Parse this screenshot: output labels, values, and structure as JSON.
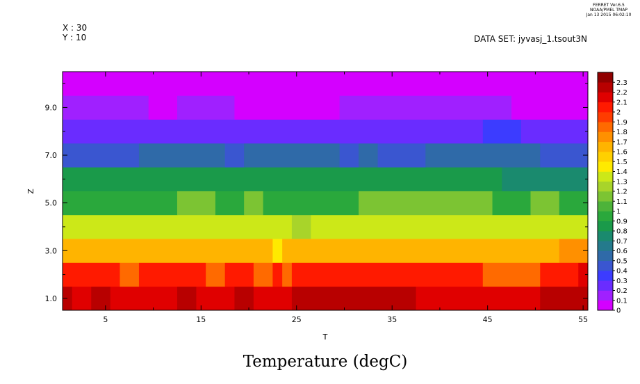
{
  "header": {
    "ferret_version": "FERRET  Ver.6.5",
    "ferret_org": "NOAA/PMEL TMAP",
    "ferret_date": "Jan 13 2015 06:02:10",
    "x_info": "X : 30",
    "y_info": "Y : 10",
    "dataset": "DATA SET: jyvasj_1.tsout3N"
  },
  "chart_data": {
    "type": "heatmap",
    "title": "Temperature (degC)",
    "xlabel": "T",
    "ylabel": "Z",
    "xlim": [
      0.5,
      55.5
    ],
    "ylim": [
      0.5,
      10.5
    ],
    "x_ticks": [
      5,
      15,
      25,
      35,
      45,
      55
    ],
    "x_tick_labels": [
      "5",
      "15",
      "25",
      "35",
      "45",
      "55"
    ],
    "y_ticks": [
      1,
      3,
      5,
      7,
      9
    ],
    "y_tick_labels": [
      "1.0",
      "3.0",
      "5.0",
      "7.0",
      "9.0"
    ],
    "z_levels": [
      "0",
      "0.1",
      "0.2",
      "0.3",
      "0.4",
      "0.5",
      "0.6",
      "0.7",
      "0.8",
      "0.9",
      "1",
      "1.1",
      "1.2",
      "1.3",
      "1.4",
      "1.5",
      "1.6",
      "1.7",
      "1.8",
      "1.9",
      "2",
      "2.1",
      "2.2",
      "2.3"
    ],
    "colorbar_colors": [
      "#d400ff",
      "#a020ff",
      "#6a2cff",
      "#3c3cff",
      "#3a56d0",
      "#2f6aa8",
      "#247a8c",
      "#1a8a6e",
      "#1a9a4a",
      "#2aa83c",
      "#4db33a",
      "#7cc433",
      "#a8d42a",
      "#cce818",
      "#ffea00",
      "#ffd000",
      "#ffb400",
      "#ff9000",
      "#ff6a00",
      "#ff3c00",
      "#ff1a00",
      "#e00000",
      "#b80000",
      "#900000"
    ],
    "rows": [
      {
        "z": 1,
        "segments": [
          [
            1,
            1,
            22
          ],
          [
            2,
            3,
            21
          ],
          [
            4,
            5,
            22
          ],
          [
            6,
            12,
            21
          ],
          [
            13,
            14,
            22
          ],
          [
            15,
            18,
            21
          ],
          [
            19,
            20,
            22
          ],
          [
            21,
            24,
            21
          ],
          [
            25,
            37,
            22
          ],
          [
            38,
            50,
            21
          ],
          [
            51,
            55,
            22
          ]
        ]
      },
      {
        "z": 2,
        "segments": [
          [
            1,
            6,
            20
          ],
          [
            7,
            8,
            18
          ],
          [
            9,
            15,
            20
          ],
          [
            16,
            17,
            18
          ],
          [
            18,
            20,
            20
          ],
          [
            21,
            22,
            18
          ],
          [
            23,
            23,
            20
          ],
          [
            24,
            24,
            18
          ],
          [
            25,
            44,
            20
          ],
          [
            45,
            50,
            18
          ],
          [
            51,
            54,
            20
          ],
          [
            55,
            55,
            21
          ]
        ]
      },
      {
        "z": 3,
        "segments": [
          [
            1,
            22,
            16
          ],
          [
            23,
            23,
            14
          ],
          [
            24,
            52,
            16
          ],
          [
            53,
            55,
            17
          ]
        ]
      },
      {
        "z": 4,
        "segments": [
          [
            1,
            24,
            13
          ],
          [
            25,
            26,
            12
          ],
          [
            27,
            55,
            13
          ]
        ]
      },
      {
        "z": 5,
        "segments": [
          [
            1,
            12,
            9
          ],
          [
            13,
            16,
            11
          ],
          [
            17,
            19,
            9
          ],
          [
            20,
            21,
            11
          ],
          [
            22,
            31,
            9
          ],
          [
            32,
            45,
            11
          ],
          [
            46,
            49,
            9
          ],
          [
            50,
            52,
            11
          ],
          [
            53,
            55,
            9
          ]
        ]
      },
      {
        "z": 6,
        "segments": [
          [
            1,
            46,
            8
          ],
          [
            47,
            55,
            7
          ]
        ]
      },
      {
        "z": 7,
        "segments": [
          [
            1,
            8,
            4
          ],
          [
            9,
            17,
            5
          ],
          [
            18,
            19,
            4
          ],
          [
            20,
            29,
            5
          ],
          [
            30,
            31,
            4
          ],
          [
            32,
            33,
            5
          ],
          [
            34,
            38,
            4
          ],
          [
            39,
            50,
            5
          ],
          [
            51,
            55,
            4
          ]
        ]
      },
      {
        "z": 8,
        "segments": [
          [
            1,
            44,
            2
          ],
          [
            45,
            48,
            3
          ],
          [
            49,
            55,
            2
          ]
        ]
      },
      {
        "z": 9,
        "segments": [
          [
            1,
            9,
            1
          ],
          [
            10,
            12,
            0
          ],
          [
            13,
            18,
            1
          ],
          [
            19,
            29,
            0
          ],
          [
            30,
            47,
            1
          ],
          [
            48,
            55,
            0
          ]
        ]
      },
      {
        "z": 10,
        "segments": [
          [
            1,
            55,
            0
          ]
        ]
      }
    ]
  }
}
